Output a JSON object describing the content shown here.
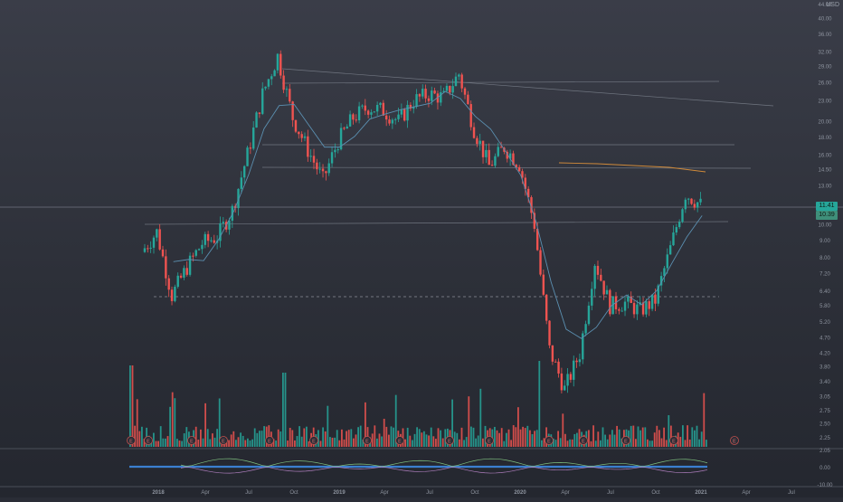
{
  "chart_data": {
    "type": "candlestick",
    "currency": "USD",
    "y_ticks": [
      "44.00",
      "40.00",
      "36.00",
      "32.00",
      "29.00",
      "26.00",
      "23.00",
      "20.00",
      "18.00",
      "16.00",
      "14.50",
      "13.00",
      "11.41",
      "10.00",
      "9.00",
      "8.00",
      "7.20",
      "6.40",
      "5.80",
      "5.20",
      "4.70",
      "4.20",
      "3.80",
      "3.40",
      "3.05",
      "2.75",
      "2.50",
      "2.25",
      "2.05"
    ],
    "oscillator_ticks": [
      "0.00",
      "-10.00"
    ],
    "x_ticks": [
      "2018",
      "Apr",
      "Jul",
      "Oct",
      "2019",
      "Apr",
      "Jul",
      "Oct",
      "2020",
      "Apr",
      "Jul",
      "Oct",
      "2021",
      "Apr",
      "Jul"
    ],
    "last_price": "11.41",
    "price_tag": "10.39",
    "earnings_marker": "E",
    "colors": {
      "up": "#26a69a",
      "down": "#ef5350",
      "ma_short": "#5b8fb0",
      "ma_long": "#d08a3a",
      "level": "#8a8f99"
    },
    "approximate_price_path": [
      [
        "Dec 2017",
        8.3
      ],
      [
        "Jan 2018",
        9.5
      ],
      [
        "Feb 2018",
        6.2
      ],
      [
        "Mar 2018",
        7.5
      ],
      [
        "Apr 2018",
        8.8
      ],
      [
        "May 2018",
        9.2
      ],
      [
        "Jun 2018",
        11.0
      ],
      [
        "Jul 2018",
        16.0
      ],
      [
        "Aug 2018",
        24.0
      ],
      [
        "Sep 2018",
        31.0
      ],
      [
        "Oct 2018",
        20.5
      ],
      [
        "Nov 2018",
        16.5
      ],
      [
        "Dec 2018",
        13.5
      ],
      [
        "Jan 2019",
        17.5
      ],
      [
        "Feb 2019",
        20.5
      ],
      [
        "Mar 2019",
        22.0
      ],
      [
        "Apr 2019",
        21.5
      ],
      [
        "May 2019",
        20.0
      ],
      [
        "Jun 2019",
        23.0
      ],
      [
        "Jul 2019",
        24.0
      ],
      [
        "Aug 2019",
        23.5
      ],
      [
        "Sep 2019",
        27.5
      ],
      [
        "Oct 2019",
        19.0
      ],
      [
        "Nov 2019",
        14.8
      ],
      [
        "Dec 2019",
        16.8
      ],
      [
        "Jan 2020",
        15.0
      ],
      [
        "Feb 2020",
        10.0
      ],
      [
        "Mar 2020",
        4.3
      ],
      [
        "Apr 2020",
        3.3
      ],
      [
        "May 2020",
        4.2
      ],
      [
        "Jun 2020",
        7.8
      ],
      [
        "Jul 2020",
        5.8
      ],
      [
        "Aug 2020",
        5.9
      ],
      [
        "Sep 2020",
        5.6
      ],
      [
        "Oct 2020",
        6.0
      ],
      [
        "Nov 2020",
        8.5
      ],
      [
        "Dec 2020",
        12.3
      ],
      [
        "Jan 2021",
        11.41
      ]
    ]
  }
}
